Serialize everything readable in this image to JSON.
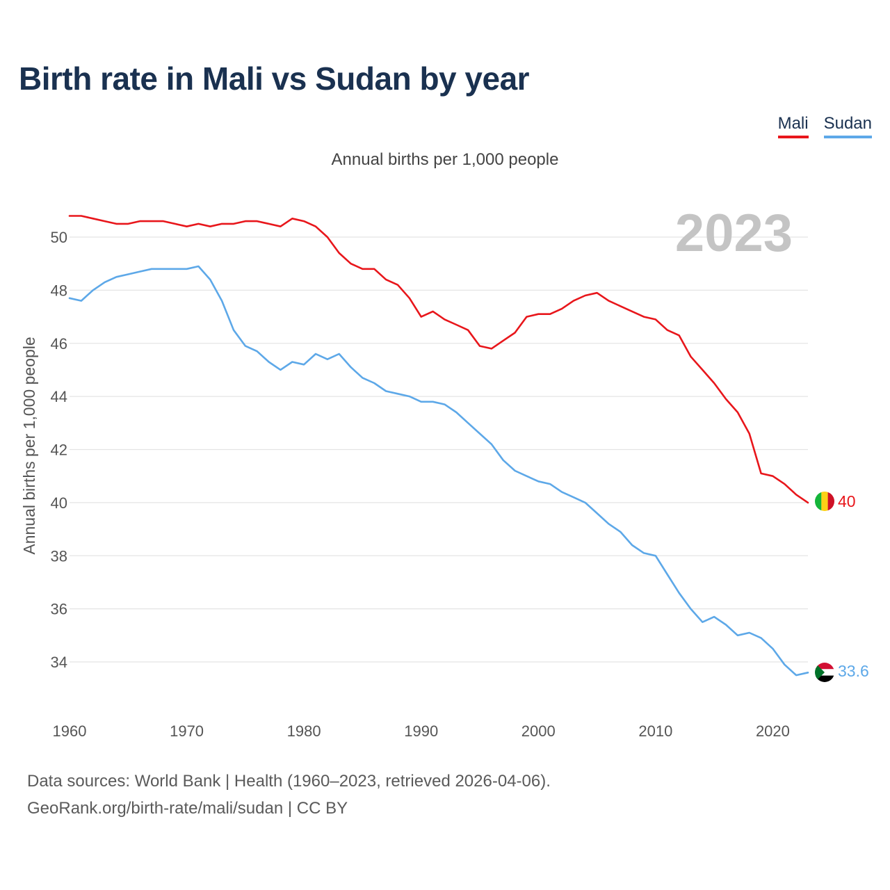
{
  "title": "Birth rate in Mali vs Sudan by year",
  "subtitle": "Annual births per 1,000 people",
  "legend": [
    {
      "label": "Mali",
      "color": "#e8161b"
    },
    {
      "label": "Sudan",
      "color": "#5da8e8"
    }
  ],
  "year_label": "2023",
  "footer": {
    "line1": "Data sources: World Bank | Health (1960–2023, retrieved 2026-04-06).",
    "line2": "GeoRank.org/birth-rate/mali/sudan | CC BY"
  },
  "chart_data": {
    "type": "line",
    "title": "Birth rate in Mali vs Sudan by year",
    "ylabel": "Annual births per 1,000 people",
    "xlabel": "",
    "xlim": [
      1960,
      2023
    ],
    "ylim": [
      32.5,
      51.5
    ],
    "grid": true,
    "x_ticks": [
      1960,
      1970,
      1980,
      1990,
      2000,
      2010,
      2020
    ],
    "y_ticks": [
      34,
      36,
      38,
      40,
      42,
      44,
      46,
      48,
      50
    ],
    "x": [
      1960,
      1961,
      1962,
      1963,
      1964,
      1965,
      1966,
      1967,
      1968,
      1969,
      1970,
      1971,
      1972,
      1973,
      1974,
      1975,
      1976,
      1977,
      1978,
      1979,
      1980,
      1981,
      1982,
      1983,
      1984,
      1985,
      1986,
      1987,
      1988,
      1989,
      1990,
      1991,
      1992,
      1993,
      1994,
      1995,
      1996,
      1997,
      1998,
      1999,
      2000,
      2001,
      2002,
      2003,
      2004,
      2005,
      2006,
      2007,
      2008,
      2009,
      2010,
      2011,
      2012,
      2013,
      2014,
      2015,
      2016,
      2017,
      2018,
      2019,
      2020,
      2021,
      2022,
      2023
    ],
    "series": [
      {
        "name": "Mali",
        "color": "#e8161b",
        "end_label": "40",
        "values": [
          50.8,
          50.8,
          50.7,
          50.6,
          50.5,
          50.5,
          50.6,
          50.6,
          50.6,
          50.5,
          50.4,
          50.5,
          50.4,
          50.5,
          50.5,
          50.6,
          50.6,
          50.5,
          50.4,
          50.7,
          50.6,
          50.4,
          50.0,
          49.4,
          49.0,
          48.8,
          48.8,
          48.4,
          48.2,
          47.7,
          47.0,
          47.2,
          46.9,
          46.7,
          46.5,
          45.9,
          45.8,
          46.1,
          46.4,
          47.0,
          47.1,
          47.1,
          47.3,
          47.6,
          47.8,
          47.9,
          47.6,
          47.4,
          47.2,
          47.0,
          46.9,
          46.5,
          46.3,
          45.5,
          45.0,
          44.5,
          43.9,
          43.4,
          42.6,
          41.1,
          41.0,
          40.7,
          40.3,
          40.0
        ]
      },
      {
        "name": "Sudan",
        "color": "#5da8e8",
        "end_label": "33.6",
        "values": [
          47.7,
          47.6,
          48.0,
          48.3,
          48.5,
          48.6,
          48.7,
          48.8,
          48.8,
          48.8,
          48.8,
          48.9,
          48.4,
          47.6,
          46.5,
          45.9,
          45.7,
          45.3,
          45.0,
          45.3,
          45.2,
          45.6,
          45.4,
          45.6,
          45.1,
          44.7,
          44.5,
          44.2,
          44.1,
          44.0,
          43.8,
          43.8,
          43.7,
          43.4,
          43.0,
          42.6,
          42.2,
          41.6,
          41.2,
          41.0,
          40.8,
          40.7,
          40.4,
          40.2,
          40.0,
          39.6,
          39.2,
          38.9,
          38.4,
          38.1,
          38.0,
          37.3,
          36.6,
          36.0,
          35.5,
          35.7,
          35.4,
          35.0,
          35.1,
          34.9,
          34.5,
          33.9,
          33.5,
          33.6
        ]
      }
    ]
  }
}
